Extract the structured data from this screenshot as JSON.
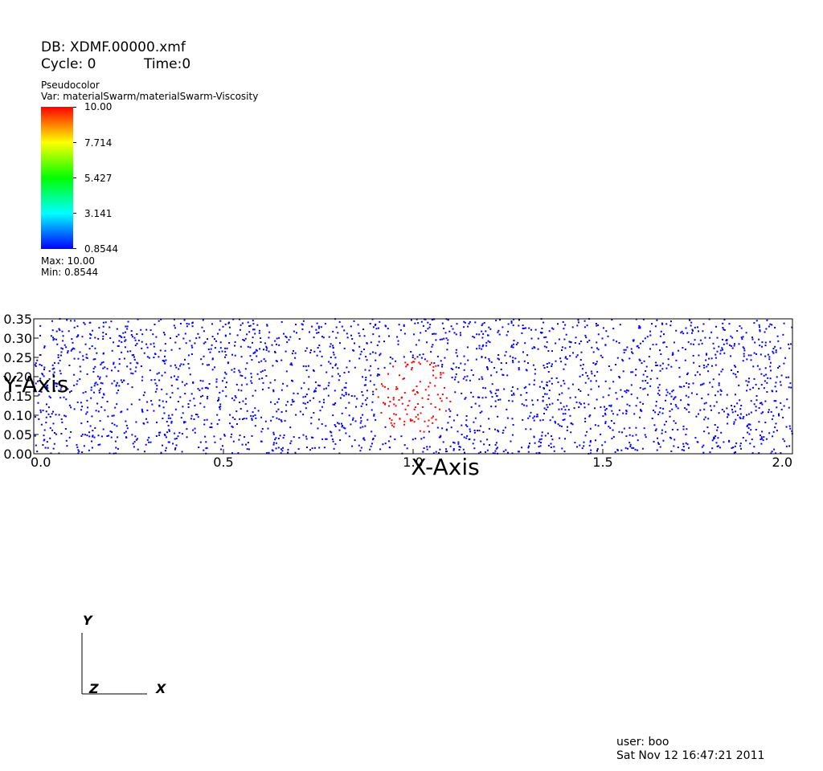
{
  "header": {
    "db": "DB: XDMF.00000.xmf",
    "cycle": "Cycle: 0",
    "time": "Time:0"
  },
  "legend": {
    "plot_type": "Pseudocolor",
    "variable": "Var: materialSwarm/materialSwarm-Viscosity",
    "ticks": [
      "10.00",
      "7.714",
      "5.427",
      "3.141",
      "0.8544"
    ],
    "max_label": "Max:  10.00",
    "min_label": "Min:  0.8544",
    "colors": [
      "#0000ff",
      "#00ffff",
      "#00ff00",
      "#ffff00",
      "#ff0000"
    ]
  },
  "triad": {
    "x": "X",
    "y": "Y",
    "z": "Z"
  },
  "footer": {
    "user": "user: boo",
    "date": "Sat Nov 12 16:47:21 2011"
  },
  "chart_data": {
    "type": "scatter",
    "xlabel": "X-Axis",
    "ylabel": "Y-Axis",
    "xlim": [
      0,
      2
    ],
    "ylim": [
      0,
      0.35
    ],
    "x_ticks": [
      "0.0",
      "0.5",
      "1.0",
      "1.5",
      "2.0"
    ],
    "y_ticks": [
      "0.00",
      "0.05",
      "0.10",
      "0.15",
      "0.20",
      "0.25",
      "0.30",
      "0.35"
    ],
    "grid": false,
    "point_count": 2600,
    "series": [
      {
        "value": 0.8544,
        "color": "#0000ff",
        "region": "background"
      },
      {
        "value": 10.0,
        "color": "#ff0000",
        "region": "circle",
        "center": [
          1.0,
          0.15
        ],
        "radius": 0.1
      }
    ]
  }
}
